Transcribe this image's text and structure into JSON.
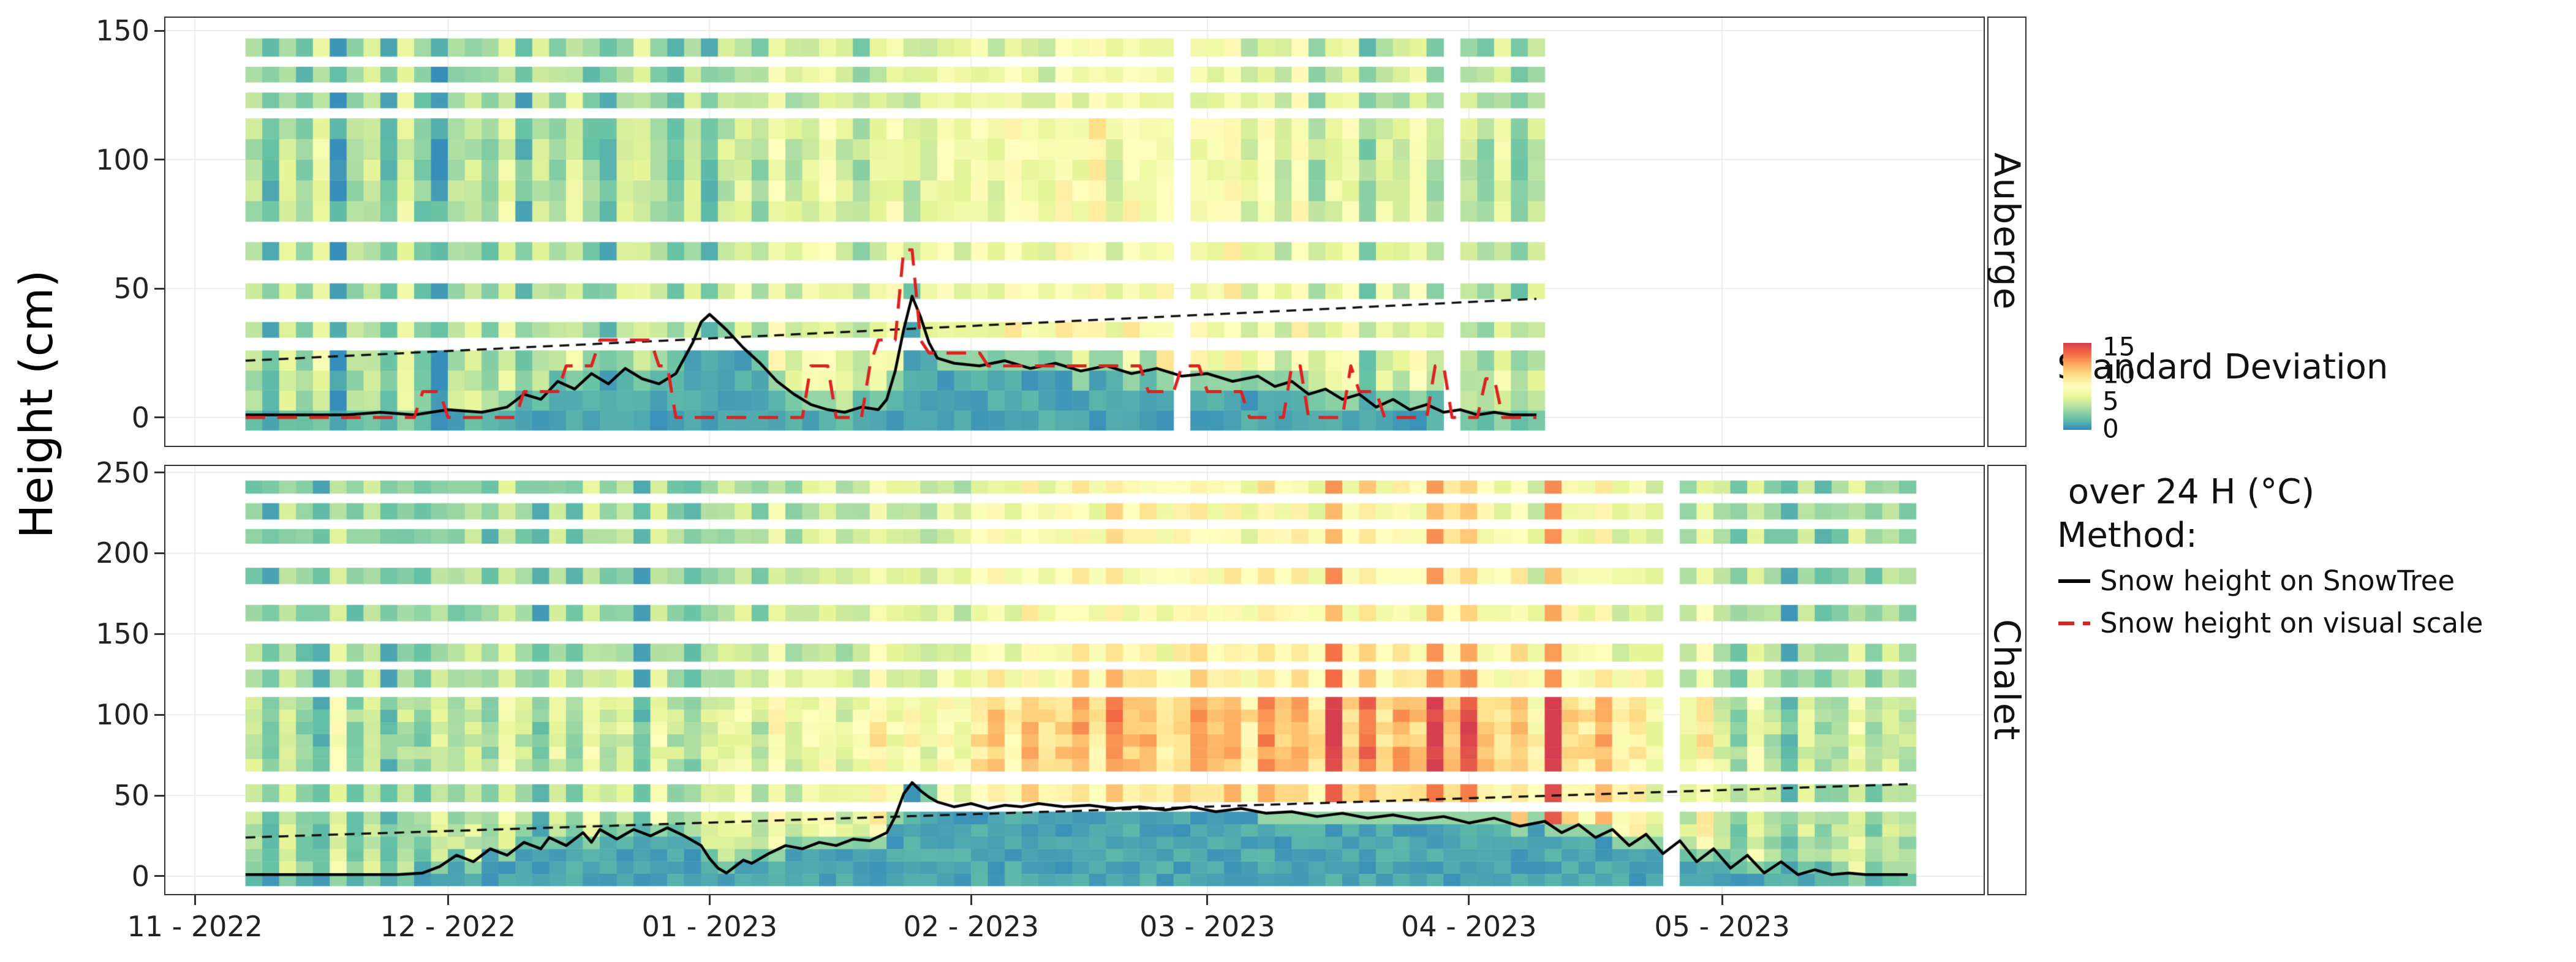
{
  "figure": {
    "y_axis_label": "Height (cm)",
    "x_tick_labels": [
      "11 - 2022",
      "12 - 2022",
      "01 - 2023",
      "02 - 2023",
      "03 - 2023",
      "04 - 2023",
      "05 - 2023"
    ],
    "x_tick_days": [
      0,
      30,
      61,
      92,
      120,
      151,
      181
    ],
    "background": "#ffffff",
    "panel_border_color": "#333333",
    "gridline_color": "#ebebeb"
  },
  "legend": {
    "colorbar_title_line1": "Standard Deviation",
    "colorbar_title_line2": " over 24 H (°C)",
    "colorbar_ticks": [
      "15",
      "10",
      "5",
      "0"
    ],
    "method_title": "Method:",
    "methods": [
      {
        "label": "Snow height on SnowTree",
        "color": "#000000",
        "dash": "solid"
      },
      {
        "label": "Snow height on visual scale",
        "color": "#dd2222",
        "dash": "dashed"
      }
    ]
  },
  "colormap": {
    "domain": [
      0,
      15
    ],
    "stops": [
      [
        0,
        "#3288bd"
      ],
      [
        1.9,
        "#66c2a5"
      ],
      [
        3.8,
        "#abdda4"
      ],
      [
        5.6,
        "#e6f598"
      ],
      [
        7.5,
        "#ffffbf"
      ],
      [
        9.4,
        "#fee08b"
      ],
      [
        11.2,
        "#fdae61"
      ],
      [
        13.1,
        "#f46d43"
      ],
      [
        15,
        "#d53e4f"
      ]
    ]
  },
  "chart_data": [
    {
      "type": "heatmap",
      "facet": "Auberge",
      "value_label": "Standard Deviation over 24 H (°C)",
      "xlim_days": [
        -3.5,
        212
      ],
      "ylim_cm": [
        -11,
        155
      ],
      "yticks": [
        0,
        50,
        100,
        150
      ],
      "data_start_day": 6,
      "data_end_day": 159,
      "col_step_days": 2,
      "row_bands_cm": [
        [
          -5,
          26,
          1.0
        ],
        [
          31,
          37,
          1.0
        ],
        [
          46,
          52,
          1.0
        ],
        [
          61,
          68,
          0.95
        ],
        [
          76,
          116,
          0.95
        ],
        [
          120,
          126,
          0.85
        ],
        [
          130,
          136,
          0.85
        ],
        [
          140,
          147,
          0.85
        ]
      ],
      "sd_base_by_col": [
        4,
        2,
        5,
        3,
        6,
        1,
        4,
        5,
        2,
        6,
        3,
        1,
        4,
        5,
        3,
        6,
        2,
        5,
        4,
        6,
        3,
        2,
        5,
        6,
        4,
        3,
        5,
        2,
        5,
        6,
        4,
        7,
        5,
        6,
        7,
        5,
        4,
        6,
        7,
        5,
        6,
        7,
        6,
        7,
        6,
        8,
        7,
        6,
        8,
        7,
        9,
        6,
        8,
        7,
        8,
        null,
        7,
        7,
        8,
        6,
        7,
        5,
        8,
        4,
        6,
        7,
        3,
        6,
        5,
        7,
        4,
        null,
        5,
        4,
        6,
        3,
        5
      ],
      "series": {
        "snowtree": [
          [
            6,
            1
          ],
          [
            10,
            1
          ],
          [
            14,
            1
          ],
          [
            18,
            1
          ],
          [
            22,
            2
          ],
          [
            26,
            1
          ],
          [
            30,
            3
          ],
          [
            34,
            2
          ],
          [
            37,
            4
          ],
          [
            39,
            9
          ],
          [
            41,
            7
          ],
          [
            43,
            14
          ],
          [
            45,
            11
          ],
          [
            47,
            17
          ],
          [
            49,
            13
          ],
          [
            51,
            19
          ],
          [
            53,
            15
          ],
          [
            55,
            13
          ],
          [
            57,
            17
          ],
          [
            59,
            29
          ],
          [
            60,
            37
          ],
          [
            61,
            40
          ],
          [
            63,
            34
          ],
          [
            65,
            27
          ],
          [
            67,
            21
          ],
          [
            69,
            14
          ],
          [
            71,
            9
          ],
          [
            73,
            5
          ],
          [
            75,
            3
          ],
          [
            77,
            2
          ],
          [
            79,
            4
          ],
          [
            81,
            3
          ],
          [
            82,
            7
          ],
          [
            83,
            18
          ],
          [
            84,
            34
          ],
          [
            85,
            47
          ],
          [
            86,
            39
          ],
          [
            87,
            29
          ],
          [
            88,
            23
          ],
          [
            90,
            21
          ],
          [
            93,
            20
          ],
          [
            96,
            22
          ],
          [
            99,
            19
          ],
          [
            102,
            21
          ],
          [
            105,
            18
          ],
          [
            108,
            20
          ],
          [
            111,
            17
          ],
          [
            114,
            19
          ],
          [
            117,
            16
          ],
          [
            120,
            17
          ],
          [
            123,
            14
          ],
          [
            126,
            16
          ],
          [
            128,
            12
          ],
          [
            130,
            14
          ],
          [
            132,
            9
          ],
          [
            134,
            11
          ],
          [
            136,
            7
          ],
          [
            138,
            9
          ],
          [
            140,
            4
          ],
          [
            142,
            7
          ],
          [
            144,
            3
          ],
          [
            146,
            5
          ],
          [
            148,
            2
          ],
          [
            150,
            3
          ],
          [
            152,
            1
          ],
          [
            154,
            2
          ],
          [
            156,
            1
          ],
          [
            159,
            1
          ]
        ],
        "visual": [
          [
            6,
            0
          ],
          [
            26,
            0
          ],
          [
            27,
            10
          ],
          [
            29,
            10
          ],
          [
            30,
            0
          ],
          [
            38,
            0
          ],
          [
            39,
            10
          ],
          [
            43,
            10
          ],
          [
            44,
            20
          ],
          [
            47,
            20
          ],
          [
            48,
            30
          ],
          [
            54,
            30
          ],
          [
            55,
            20
          ],
          [
            56,
            20
          ],
          [
            57,
            0
          ],
          [
            72,
            0
          ],
          [
            73,
            20
          ],
          [
            75,
            20
          ],
          [
            76,
            0
          ],
          [
            79,
            0
          ],
          [
            80,
            20
          ],
          [
            81,
            30
          ],
          [
            83,
            30
          ],
          [
            84,
            65
          ],
          [
            85,
            65
          ],
          [
            86,
            30
          ],
          [
            87,
            25
          ],
          [
            93,
            25
          ],
          [
            94,
            20
          ],
          [
            112,
            20
          ],
          [
            113,
            10
          ],
          [
            116,
            10
          ],
          [
            117,
            20
          ],
          [
            119,
            20
          ],
          [
            120,
            10
          ],
          [
            124,
            10
          ],
          [
            125,
            0
          ],
          [
            129,
            0
          ],
          [
            130,
            20
          ],
          [
            131,
            20
          ],
          [
            132,
            0
          ],
          [
            136,
            0
          ],
          [
            137,
            20
          ],
          [
            138,
            10
          ],
          [
            140,
            10
          ],
          [
            141,
            0
          ],
          [
            146,
            0
          ],
          [
            147,
            20
          ],
          [
            148,
            20
          ],
          [
            149,
            0
          ],
          [
            152,
            0
          ],
          [
            153,
            15
          ],
          [
            154,
            15
          ],
          [
            155,
            0
          ],
          [
            159,
            0
          ]
        ],
        "trend": [
          [
            6,
            22
          ],
          [
            159,
            46
          ]
        ]
      }
    },
    {
      "type": "heatmap",
      "facet": "Chalet",
      "value_label": "Standard Deviation over 24 H (°C)",
      "xlim_days": [
        -3.5,
        212
      ],
      "ylim_cm": [
        -11,
        254
      ],
      "yticks": [
        0,
        50,
        100,
        150,
        200,
        250
      ],
      "data_start_day": 6,
      "data_end_day": 203,
      "col_step_days": 2,
      "row_bands_cm": [
        [
          -6,
          40,
          1.0
        ],
        [
          46,
          57,
          1.0
        ],
        [
          65,
          111,
          1.1
        ],
        [
          117,
          128,
          0.9
        ],
        [
          133,
          144,
          0.85
        ],
        [
          158,
          168,
          0.8
        ],
        [
          181,
          191,
          0.8
        ],
        [
          206,
          215,
          0.8
        ],
        [
          221,
          231,
          0.8
        ],
        [
          237,
          245,
          0.8
        ]
      ],
      "sd_base_by_col": [
        4,
        2,
        5,
        3,
        2,
        6,
        3,
        5,
        2,
        4,
        3,
        5,
        4,
        5,
        3,
        6,
        4,
        2,
        5,
        3,
        6,
        4,
        5,
        2,
        6,
        4,
        3,
        5,
        5,
        6,
        4,
        7,
        5,
        6,
        7,
        5,
        6,
        8,
        6,
        7,
        5,
        7,
        6,
        8,
        9,
        7,
        10,
        8,
        9,
        10,
        8,
        11,
        9,
        10,
        8,
        9,
        10,
        9,
        10,
        8,
        11,
        9,
        10,
        8,
        14,
        9,
        12,
        8,
        10,
        9,
        14,
        10,
        13,
        9,
        8,
        10,
        7,
        14,
        9,
        8,
        10,
        7,
        8,
        6,
        null,
        5,
        8,
        5,
        3,
        6,
        4,
        2,
        5,
        3,
        4,
        6,
        3,
        5,
        4
      ],
      "series": {
        "snowtree": [
          [
            6,
            1
          ],
          [
            12,
            1
          ],
          [
            18,
            1
          ],
          [
            24,
            1
          ],
          [
            27,
            2
          ],
          [
            29,
            6
          ],
          [
            31,
            13
          ],
          [
            33,
            9
          ],
          [
            35,
            17
          ],
          [
            37,
            13
          ],
          [
            39,
            21
          ],
          [
            41,
            17
          ],
          [
            42,
            24
          ],
          [
            44,
            19
          ],
          [
            46,
            27
          ],
          [
            47,
            21
          ],
          [
            48,
            29
          ],
          [
            50,
            23
          ],
          [
            52,
            29
          ],
          [
            54,
            25
          ],
          [
            56,
            30
          ],
          [
            58,
            25
          ],
          [
            60,
            19
          ],
          [
            61,
            11
          ],
          [
            62,
            5
          ],
          [
            63,
            2
          ],
          [
            64,
            6
          ],
          [
            65,
            10
          ],
          [
            66,
            8
          ],
          [
            68,
            14
          ],
          [
            70,
            19
          ],
          [
            72,
            17
          ],
          [
            74,
            21
          ],
          [
            76,
            19
          ],
          [
            78,
            23
          ],
          [
            80,
            22
          ],
          [
            82,
            27
          ],
          [
            83,
            37
          ],
          [
            84,
            51
          ],
          [
            85,
            58
          ],
          [
            86,
            53
          ],
          [
            87,
            49
          ],
          [
            88,
            46
          ],
          [
            90,
            43
          ],
          [
            92,
            45
          ],
          [
            94,
            42
          ],
          [
            96,
            44
          ],
          [
            98,
            43
          ],
          [
            100,
            45
          ],
          [
            103,
            43
          ],
          [
            106,
            44
          ],
          [
            109,
            42
          ],
          [
            112,
            43
          ],
          [
            115,
            41
          ],
          [
            118,
            43
          ],
          [
            121,
            40
          ],
          [
            124,
            42
          ],
          [
            127,
            39
          ],
          [
            130,
            40
          ],
          [
            133,
            37
          ],
          [
            136,
            39
          ],
          [
            139,
            36
          ],
          [
            142,
            38
          ],
          [
            145,
            35
          ],
          [
            148,
            37
          ],
          [
            151,
            33
          ],
          [
            154,
            36
          ],
          [
            157,
            31
          ],
          [
            160,
            34
          ],
          [
            162,
            27
          ],
          [
            164,
            32
          ],
          [
            166,
            24
          ],
          [
            168,
            29
          ],
          [
            170,
            19
          ],
          [
            172,
            26
          ],
          [
            174,
            14
          ],
          [
            176,
            22
          ],
          [
            178,
            9
          ],
          [
            180,
            17
          ],
          [
            182,
            5
          ],
          [
            184,
            13
          ],
          [
            186,
            2
          ],
          [
            188,
            9
          ],
          [
            190,
            1
          ],
          [
            192,
            4
          ],
          [
            194,
            1
          ],
          [
            196,
            2
          ],
          [
            198,
            1
          ],
          [
            200,
            1
          ],
          [
            203,
            1
          ]
        ],
        "trend": [
          [
            6,
            24
          ],
          [
            203,
            57
          ]
        ]
      }
    }
  ]
}
